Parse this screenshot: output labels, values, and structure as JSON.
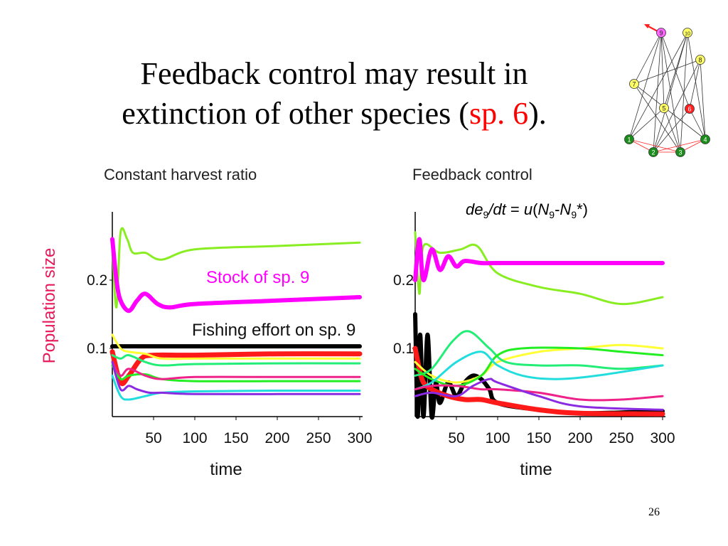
{
  "slide": {
    "title_line1": "Feedback control may result in",
    "title_line2_pre": "extinction of other species (",
    "title_line2_red": "sp. 6",
    "title_line2_post": ").",
    "page_number": "26",
    "y_axis_label": "Population size"
  },
  "food_web": {
    "nodes": [
      {
        "id": "1",
        "color": "#1a8c1a"
      },
      {
        "id": "2",
        "color": "#1a8c1a"
      },
      {
        "id": "3",
        "color": "#1a8c1a"
      },
      {
        "id": "4",
        "color": "#1a8c1a"
      },
      {
        "id": "5",
        "color": "#ffff66"
      },
      {
        "id": "6",
        "color": "#ff2020"
      },
      {
        "id": "7",
        "color": "#ffff66"
      },
      {
        "id": "8",
        "color": "#ffff66"
      },
      {
        "id": "9",
        "color": "#ff66ff"
      },
      {
        "id": "10",
        "color": "#ffff66"
      }
    ]
  },
  "chart_data": [
    {
      "type": "line",
      "title": "Constant harvest ratio",
      "xlabel": "time",
      "ylabel": "Population size",
      "xlim": [
        0,
        300
      ],
      "ylim": [
        0,
        0.3
      ],
      "xticks": [
        50,
        100,
        150,
        200,
        250,
        300
      ],
      "yticks": [
        0.1,
        0.2
      ],
      "annotations": [
        "Stock of sp. 9",
        "Fishing effort on sp. 9"
      ],
      "series": [
        {
          "color": "#88ee22",
          "x": [
            0,
            5,
            10,
            18,
            25,
            40,
            60,
            100,
            200,
            300
          ],
          "y": [
            0.25,
            0.16,
            0.27,
            0.26,
            0.24,
            0.24,
            0.23,
            0.245,
            0.25,
            0.255
          ]
        },
        {
          "color": "#ff00ff",
          "x": [
            0,
            5,
            10,
            20,
            30,
            40,
            55,
            70,
            100,
            200,
            300
          ],
          "y": [
            0.26,
            0.2,
            0.17,
            0.155,
            0.17,
            0.18,
            0.165,
            0.16,
            0.165,
            0.17,
            0.175
          ]
        },
        {
          "color": "#000000",
          "x": [
            0,
            50,
            100,
            200,
            300
          ],
          "y": [
            0.103,
            0.103,
            0.103,
            0.103,
            0.103
          ]
        },
        {
          "color": "#ff1a1a",
          "x": [
            0,
            10,
            20,
            35,
            50,
            100,
            200,
            300
          ],
          "y": [
            0.095,
            0.05,
            0.06,
            0.085,
            0.09,
            0.09,
            0.092,
            0.092
          ]
        },
        {
          "color": "#ffff33",
          "x": [
            0,
            10,
            20,
            40,
            60,
            100,
            200,
            300
          ],
          "y": [
            0.12,
            0.1,
            0.095,
            0.092,
            0.085,
            0.085,
            0.085,
            0.085
          ]
        },
        {
          "color": "#22ee77",
          "x": [
            0,
            10,
            20,
            40,
            60,
            100,
            200,
            300
          ],
          "y": [
            0.09,
            0.085,
            0.09,
            0.08,
            0.075,
            0.077,
            0.078,
            0.078
          ]
        },
        {
          "color": "#22ee22",
          "x": [
            0,
            10,
            20,
            40,
            60,
            100,
            200,
            300
          ],
          "y": [
            0.075,
            0.055,
            0.06,
            0.062,
            0.055,
            0.052,
            0.052,
            0.052
          ]
        },
        {
          "color": "#ee2288",
          "x": [
            0,
            10,
            20,
            40,
            60,
            100,
            200,
            300
          ],
          "y": [
            0.08,
            0.06,
            0.07,
            0.06,
            0.055,
            0.058,
            0.058,
            0.058
          ]
        },
        {
          "color": "#22dddd",
          "x": [
            0,
            10,
            20,
            40,
            60,
            100,
            200,
            300
          ],
          "y": [
            0.06,
            0.03,
            0.025,
            0.03,
            0.035,
            0.037,
            0.038,
            0.038
          ]
        },
        {
          "color": "#8a2be2",
          "x": [
            0,
            10,
            20,
            30,
            45,
            60,
            100,
            200,
            300
          ],
          "y": [
            0.08,
            0.04,
            0.045,
            0.04,
            0.035,
            0.035,
            0.033,
            0.033,
            0.033
          ]
        }
      ]
    },
    {
      "type": "line",
      "title": "Feedback control",
      "formula": "de9/dt = u(N9-N9*)",
      "xlabel": "time",
      "xlim": [
        0,
        300
      ],
      "ylim": [
        0,
        0.3
      ],
      "xticks": [
        50,
        100,
        150,
        200,
        250,
        300
      ],
      "yticks": [
        0.1,
        0.2
      ],
      "series": [
        {
          "color": "#88ee22",
          "x": [
            0,
            5,
            10,
            30,
            55,
            75,
            100,
            150,
            200,
            250,
            300
          ],
          "y": [
            0.27,
            0.18,
            0.25,
            0.24,
            0.245,
            0.25,
            0.21,
            0.19,
            0.18,
            0.165,
            0.175
          ]
        },
        {
          "color": "#ff00ff",
          "x": [
            0,
            5,
            10,
            20,
            30,
            40,
            50,
            60,
            80,
            100,
            200,
            300
          ],
          "y": [
            0.2,
            0.26,
            0.2,
            0.245,
            0.215,
            0.235,
            0.22,
            0.228,
            0.225,
            0.225,
            0.225,
            0.225
          ]
        },
        {
          "color": "#000000",
          "x": [
            0,
            3,
            6,
            10,
            15,
            20,
            25,
            30,
            40,
            50,
            60,
            70,
            80,
            90,
            100,
            150,
            200,
            250,
            300
          ],
          "y": [
            0.15,
            0.0,
            0.12,
            0.0,
            0.12,
            0.0,
            0.05,
            0.02,
            0.05,
            0.03,
            0.05,
            0.06,
            0.055,
            0.04,
            0.02,
            0.01,
            0.005,
            0.006,
            0.008
          ]
        },
        {
          "color": "#ff1a1a",
          "x": [
            0,
            5,
            10,
            20,
            40,
            60,
            80,
            100,
            150,
            200,
            300
          ],
          "y": [
            0.1,
            0.07,
            0.05,
            0.04,
            0.03,
            0.025,
            0.025,
            0.02,
            0.01,
            0.005,
            0.004
          ]
        },
        {
          "color": "#ffff33",
          "x": [
            0,
            20,
            50,
            80,
            100,
            150,
            200,
            250,
            300
          ],
          "y": [
            0.08,
            0.06,
            0.05,
            0.06,
            0.08,
            0.095,
            0.1,
            0.105,
            0.1
          ]
        },
        {
          "color": "#22ee77",
          "x": [
            0,
            20,
            45,
            65,
            90,
            110,
            150,
            200,
            250,
            300
          ],
          "y": [
            0.06,
            0.07,
            0.11,
            0.125,
            0.1,
            0.08,
            0.075,
            0.075,
            0.07,
            0.075
          ]
        },
        {
          "color": "#22ee22",
          "x": [
            0,
            20,
            50,
            80,
            100,
            130,
            200,
            250,
            300
          ],
          "y": [
            0.07,
            0.055,
            0.045,
            0.06,
            0.09,
            0.1,
            0.1,
            0.095,
            0.09
          ]
        },
        {
          "color": "#22dddd",
          "x": [
            0,
            20,
            50,
            80,
            100,
            130,
            170,
            220,
            300
          ],
          "y": [
            0.04,
            0.05,
            0.08,
            0.095,
            0.075,
            0.06,
            0.055,
            0.06,
            0.075
          ]
        },
        {
          "color": "#ee2288",
          "x": [
            0,
            20,
            50,
            80,
            100,
            150,
            200,
            250,
            300
          ],
          "y": [
            0.04,
            0.045,
            0.045,
            0.04,
            0.04,
            0.035,
            0.025,
            0.025,
            0.03
          ]
        },
        {
          "color": "#8a2be2",
          "x": [
            0,
            20,
            50,
            70,
            90,
            100,
            150,
            200,
            300
          ],
          "y": [
            0.03,
            0.035,
            0.03,
            0.045,
            0.055,
            0.05,
            0.03,
            0.015,
            0.01
          ]
        }
      ]
    }
  ]
}
